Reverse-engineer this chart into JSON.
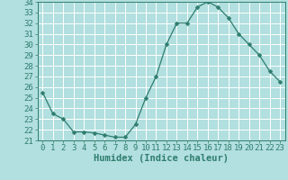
{
  "x": [
    0,
    1,
    2,
    3,
    4,
    5,
    6,
    7,
    8,
    9,
    10,
    11,
    12,
    13,
    14,
    15,
    16,
    17,
    18,
    19,
    20,
    21,
    22,
    23
  ],
  "y": [
    25.5,
    23.5,
    23.0,
    21.8,
    21.8,
    21.7,
    21.5,
    21.3,
    21.3,
    22.5,
    25.0,
    27.0,
    30.0,
    32.0,
    32.0,
    33.5,
    34.0,
    33.5,
    32.5,
    31.0,
    30.0,
    29.0,
    27.5,
    26.5
  ],
  "line_color": "#2e7d6e",
  "marker": "D",
  "marker_size": 2.5,
  "bg_color": "#b2dfdf",
  "grid_color": "#ffffff",
  "xlabel": "Humidex (Indice chaleur)",
  "ylim": [
    21,
    34
  ],
  "xlim": [
    -0.5,
    23.5
  ],
  "yticks": [
    21,
    22,
    23,
    24,
    25,
    26,
    27,
    28,
    29,
    30,
    31,
    32,
    33,
    34
  ],
  "xticks": [
    0,
    1,
    2,
    3,
    4,
    5,
    6,
    7,
    8,
    9,
    10,
    11,
    12,
    13,
    14,
    15,
    16,
    17,
    18,
    19,
    20,
    21,
    22,
    23
  ],
  "tick_font_size": 6.5,
  "xlabel_font_size": 7.5
}
